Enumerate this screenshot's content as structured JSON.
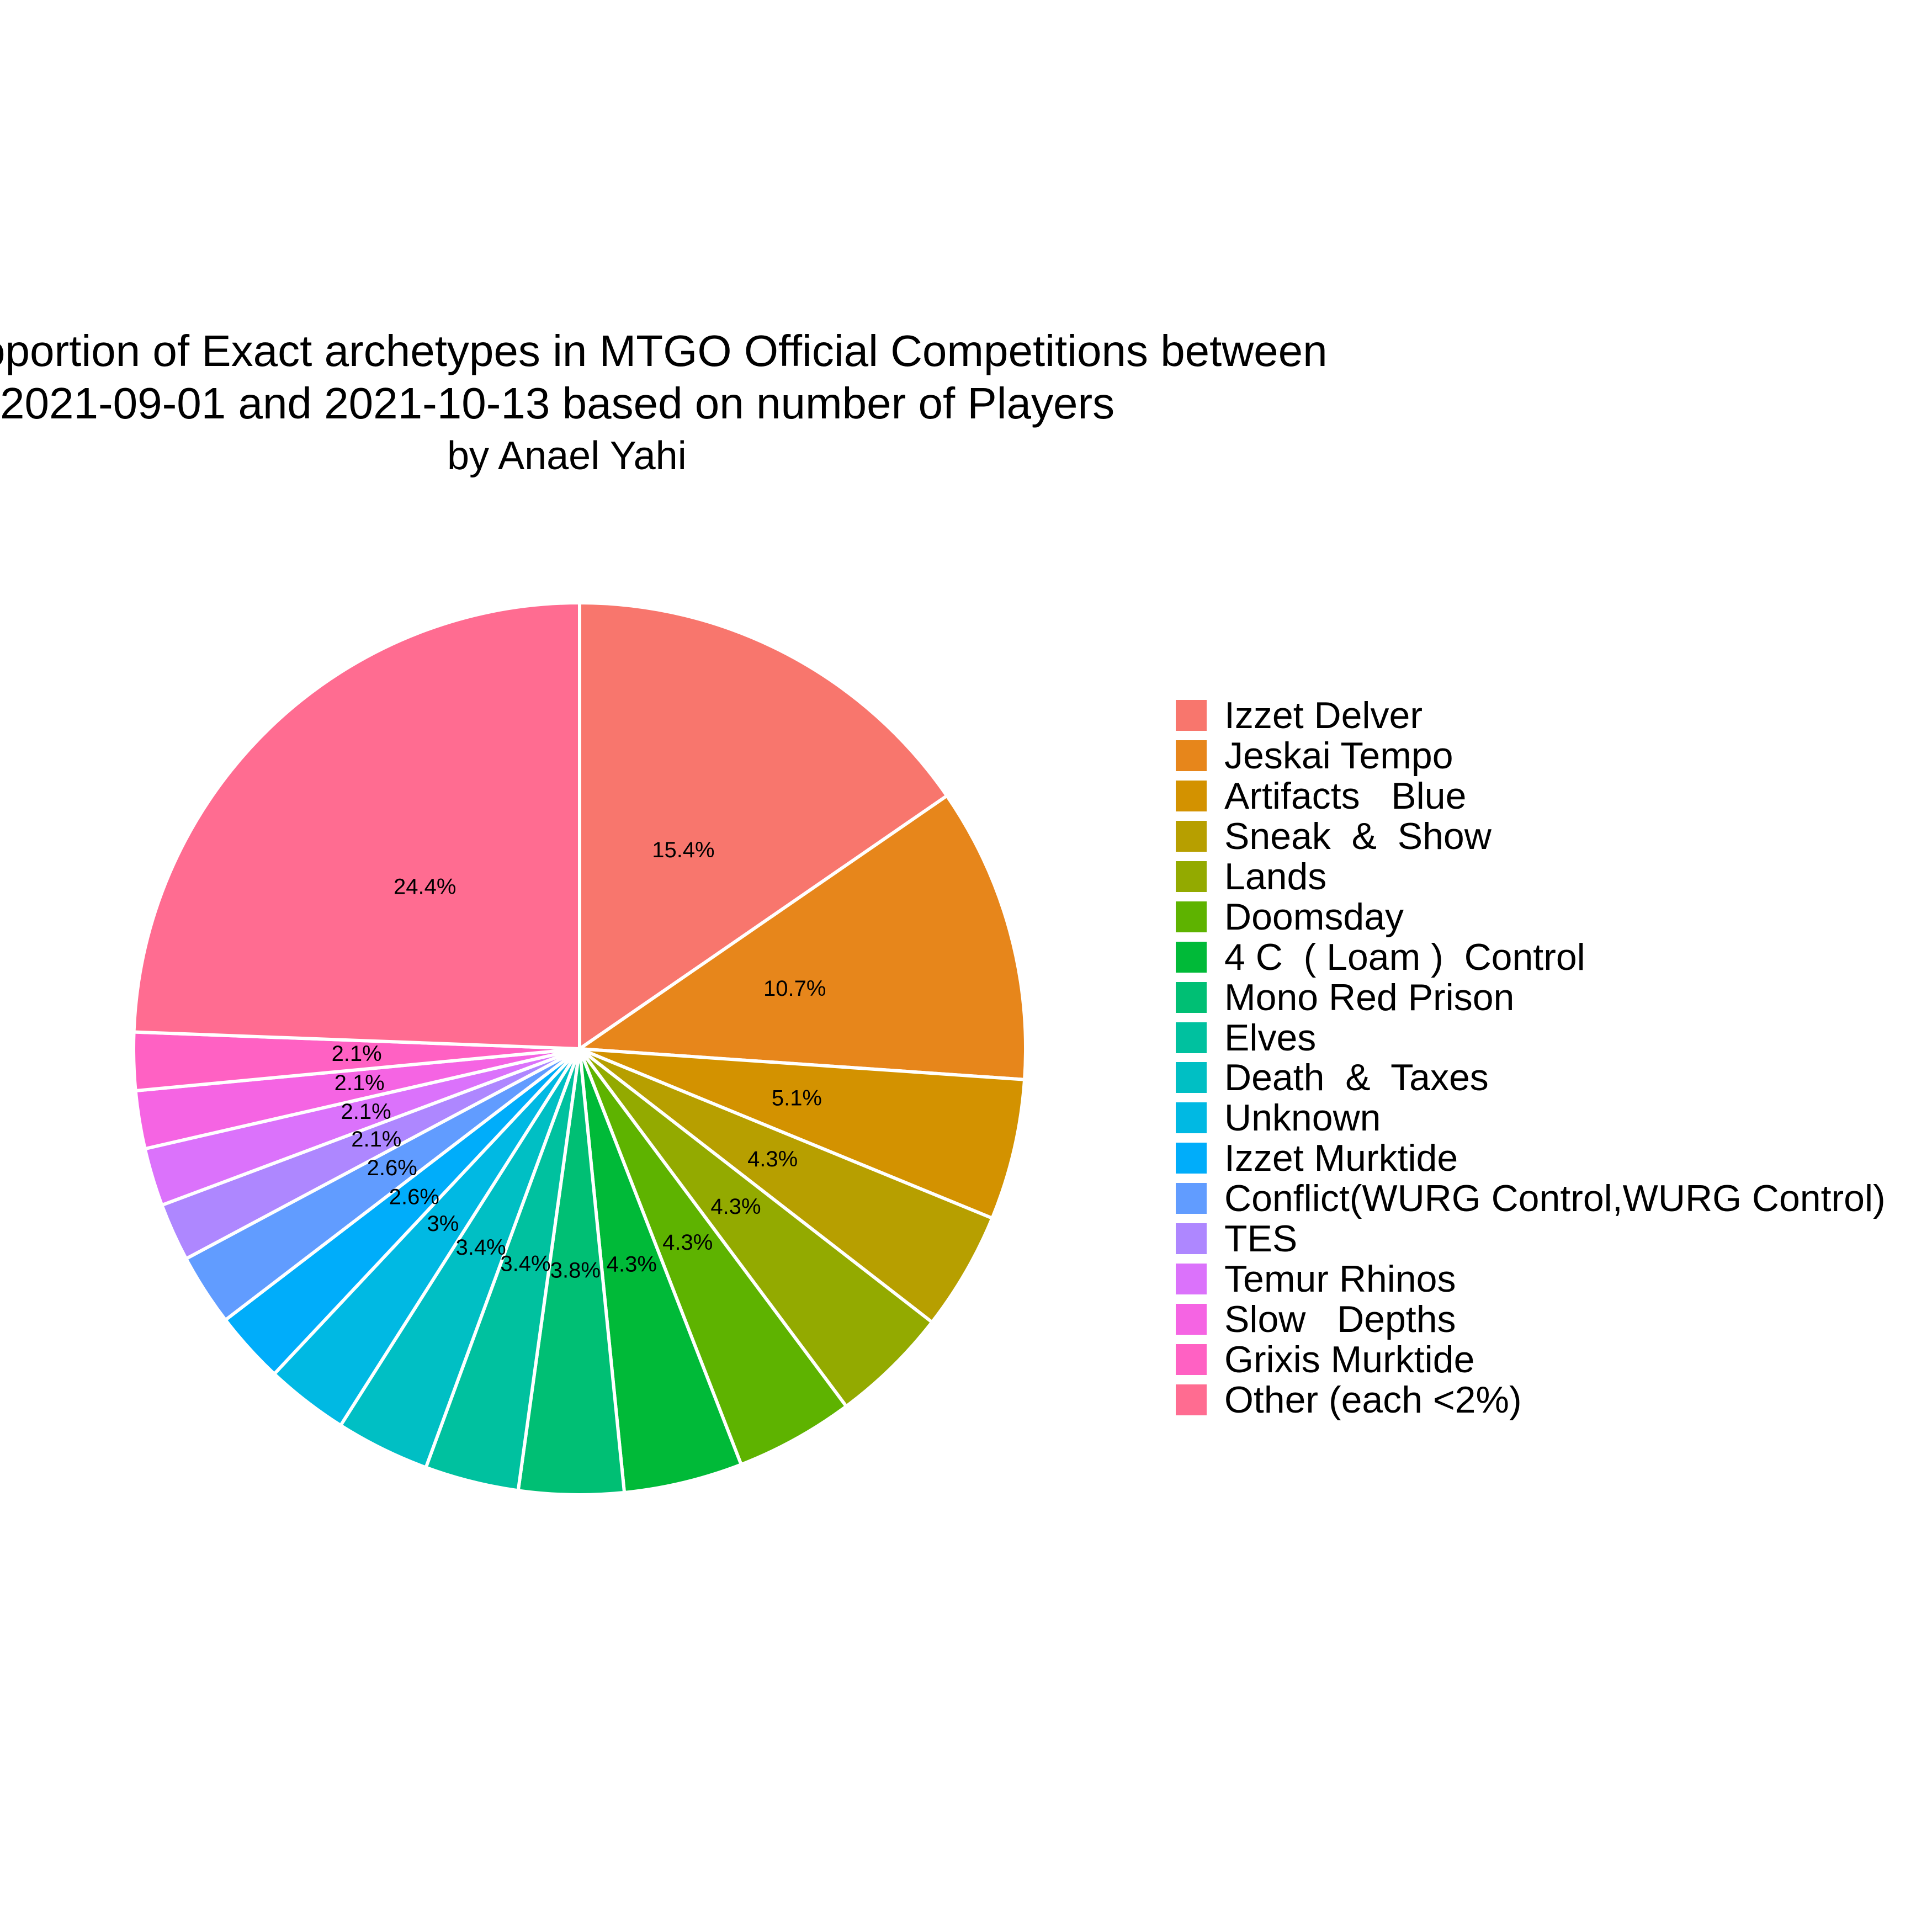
{
  "chart_data": {
    "type": "pie",
    "title": "Proportion of Exact archetypes in MTGO Official Competitions between 2021-09-01 and 2021-10-13 based on number of Players",
    "title_lines": [
      "Proportion of Exact archetypes in MTGO Official Competitions between",
      "2021-09-01 and 2021-10-13 based on number of Players"
    ],
    "subtitle": "by Anael Yahi",
    "legend_position": "right",
    "slices": [
      {
        "label": "Izzet Delver",
        "value": 15.4,
        "display": "15.4%",
        "color": "#F8766D"
      },
      {
        "label": "Jeskai Tempo",
        "value": 10.7,
        "display": "10.7%",
        "color": "#E58700"
      },
      {
        "label": "Artifacts   Blue",
        "value": 5.1,
        "display": "5.1%",
        "color": "#C99800"
      },
      {
        "label": "Sneak  &  Show",
        "value": 4.3,
        "display": "4.3%",
        "color": "#A3A500"
      },
      {
        "label": "Lands",
        "value": 4.3,
        "display": "4.3%",
        "color": "#6BB100"
      },
      {
        "label": "Doomsday",
        "value": 4.3,
        "display": "4.3%",
        "color": "#00BA38"
      },
      {
        "label": "4 C  ( Loam )  Control",
        "value": 4.3,
        "display": "4.3%",
        "color": "#00BF7D"
      },
      {
        "label": "Mono Red Prison",
        "value": 3.8,
        "display": "3.8%",
        "color": "#00C0AF"
      },
      {
        "label": "Elves",
        "value": 3.4,
        "display": "3.4%",
        "color": "#00BCD8"
      },
      {
        "label": "Death  &  Taxes",
        "value": 3.4,
        "display": "3.4%",
        "color": "#00B0F6"
      },
      {
        "label": "Unknown",
        "value": 3.0,
        "display": "3%",
        "color": "#619CFF"
      },
      {
        "label": "Izzet Murktide",
        "value": 2.6,
        "display": "2.6%",
        "color": "#B983FF"
      },
      {
        "label": "Conflict(WURG Control,WURG Control)",
        "value": 2.6,
        "display": "2.6%",
        "color": "#E76BF3"
      },
      {
        "label": "TES",
        "value": 2.1,
        "display": "2.1%",
        "color": "#FD61D1"
      },
      {
        "label": "Temur Rhinos",
        "value": 2.1,
        "display": "2.1%",
        "color": "#FF67A4"
      },
      {
        "label": "Slow   Depths",
        "value": 2.1,
        "display": "2.1%",
        "color": "#F8766D"
      },
      {
        "label": "Grixis Murktide",
        "value": 2.1,
        "display": "2.1%",
        "color": "#F8766D"
      },
      {
        "label": "Other (each <2%)",
        "value": 24.4,
        "display": "24.4%",
        "color": "#F8766D"
      }
    ]
  }
}
